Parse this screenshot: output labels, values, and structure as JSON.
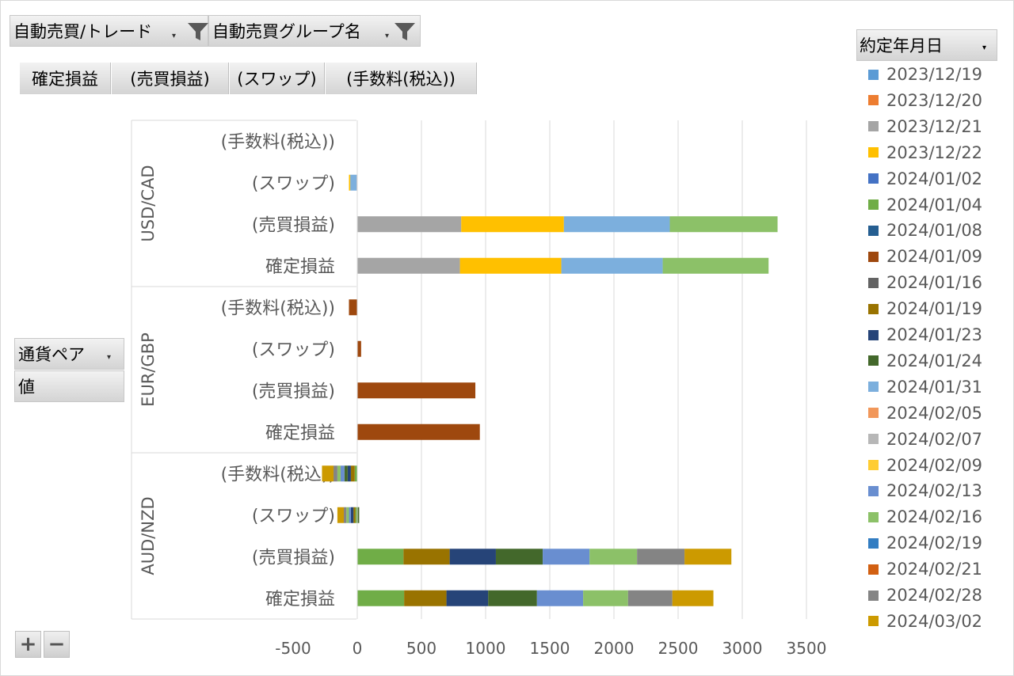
{
  "filters": [
    {
      "label": "自動売買/トレード"
    },
    {
      "label": "自動売買グループ名"
    }
  ],
  "value_buttons": [
    "確定損益",
    "(売買損益)",
    "(スワップ)",
    "(手数料(税込))"
  ],
  "row_field": {
    "label": "通貨ペア",
    "values_label": "値"
  },
  "legend": {
    "title": "約定年月日",
    "items": [
      {
        "label": "2023/12/19",
        "color": "#5b9bd5"
      },
      {
        "label": "2023/12/20",
        "color": "#ed7d31"
      },
      {
        "label": "2023/12/21",
        "color": "#a5a5a5"
      },
      {
        "label": "2023/12/22",
        "color": "#ffc000"
      },
      {
        "label": "2024/01/02",
        "color": "#4472c4"
      },
      {
        "label": "2024/01/04",
        "color": "#70ad47"
      },
      {
        "label": "2024/01/08",
        "color": "#255e91"
      },
      {
        "label": "2024/01/09",
        "color": "#9e480e"
      },
      {
        "label": "2024/01/16",
        "color": "#636363"
      },
      {
        "label": "2024/01/19",
        "color": "#997300"
      },
      {
        "label": "2024/01/23",
        "color": "#264478"
      },
      {
        "label": "2024/01/24",
        "color": "#43682b"
      },
      {
        "label": "2024/01/31",
        "color": "#7cafdd"
      },
      {
        "label": "2024/02/05",
        "color": "#f1975a"
      },
      {
        "label": "2024/02/07",
        "color": "#b7b7b7"
      },
      {
        "label": "2024/02/09",
        "color": "#ffcd33"
      },
      {
        "label": "2024/02/13",
        "color": "#698ed0"
      },
      {
        "label": "2024/02/16",
        "color": "#8cc168"
      },
      {
        "label": "2024/02/19",
        "color": "#327dc2"
      },
      {
        "label": "2024/02/21",
        "color": "#d26012"
      },
      {
        "label": "2024/02/28",
        "color": "#848484"
      },
      {
        "label": "2024/03/02",
        "color": "#cc9a00"
      }
    ]
  },
  "chart_data": {
    "type": "bar",
    "orientation": "horizontal",
    "stacked": true,
    "xlim": [
      -500,
      3500
    ],
    "xticks": [
      -500,
      0,
      500,
      1000,
      1500,
      2000,
      2500,
      3000,
      3500
    ],
    "grid": true,
    "groups": [
      {
        "name": "USD/CAD",
        "rows": [
          {
            "label": "(手数料(税込))",
            "segments": []
          },
          {
            "label": "(スワップ)",
            "segments": [
              {
                "date": "2023/12/21",
                "value": -5
              },
              {
                "date": "2024/01/31",
                "value": -50
              },
              {
                "date": "2023/12/22",
                "value": -10
              }
            ]
          },
          {
            "label": "(売買損益)",
            "segments": [
              {
                "date": "2023/12/21",
                "value": 810
              },
              {
                "date": "2023/12/22",
                "value": 800
              },
              {
                "date": "2024/01/31",
                "value": 825
              },
              {
                "date": "2024/02/16",
                "value": 840
              }
            ]
          },
          {
            "label": "確定損益",
            "segments": [
              {
                "date": "2023/12/21",
                "value": 800
              },
              {
                "date": "2023/12/22",
                "value": 790
              },
              {
                "date": "2024/01/31",
                "value": 790
              },
              {
                "date": "2024/02/16",
                "value": 825
              }
            ]
          }
        ]
      },
      {
        "name": "EUR/GBP",
        "rows": [
          {
            "label": "(手数料(税込))",
            "segments": [
              {
                "date": "2024/01/09",
                "value": -65
              }
            ]
          },
          {
            "label": "(スワップ)",
            "segments": [
              {
                "date": "2024/01/09",
                "value": 30
              }
            ]
          },
          {
            "label": "(売買損益)",
            "segments": [
              {
                "date": "2024/01/09",
                "value": 920
              }
            ]
          },
          {
            "label": "確定損益",
            "segments": [
              {
                "date": "2024/01/09",
                "value": 955
              }
            ]
          }
        ]
      },
      {
        "name": "AUD/NZD",
        "rows": [
          {
            "label": "(手数料(税込))",
            "segments": [
              {
                "date": "2024/01/04",
                "value": -20
              },
              {
                "date": "2024/01/19",
                "value": -30
              },
              {
                "date": "2024/01/23",
                "value": -25
              },
              {
                "date": "2024/01/24",
                "value": -25
              },
              {
                "date": "2024/02/13",
                "value": -30
              },
              {
                "date": "2024/02/16",
                "value": -25
              },
              {
                "date": "2024/02/28",
                "value": -30
              },
              {
                "date": "2024/03/02",
                "value": -90
              }
            ]
          },
          {
            "label": "(スワップ)",
            "segments": [
              {
                "date": "2024/01/04",
                "value": -15
              },
              {
                "date": "2024/01/19",
                "value": -15
              },
              {
                "date": "2024/01/23",
                "value": -20
              },
              {
                "date": "2024/01/24",
                "value": 15
              },
              {
                "date": "2024/02/13",
                "value": -15
              },
              {
                "date": "2024/02/16",
                "value": -20
              },
              {
                "date": "2024/02/28",
                "value": -20
              },
              {
                "date": "2024/03/02",
                "value": -50
              }
            ]
          },
          {
            "label": "(売買損益)",
            "segments": [
              {
                "date": "2024/01/04",
                "value": 360
              },
              {
                "date": "2024/01/19",
                "value": 360
              },
              {
                "date": "2024/01/23",
                "value": 360
              },
              {
                "date": "2024/01/24",
                "value": 365
              },
              {
                "date": "2024/02/13",
                "value": 365
              },
              {
                "date": "2024/02/16",
                "value": 370
              },
              {
                "date": "2024/02/28",
                "value": 370
              },
              {
                "date": "2024/03/02",
                "value": 365
              }
            ]
          },
          {
            "label": "確定損益",
            "segments": [
              {
                "date": "2024/01/04",
                "value": 365
              },
              {
                "date": "2024/01/19",
                "value": 330
              },
              {
                "date": "2024/01/23",
                "value": 325
              },
              {
                "date": "2024/01/24",
                "value": 380
              },
              {
                "date": "2024/02/13",
                "value": 360
              },
              {
                "date": "2024/02/16",
                "value": 350
              },
              {
                "date": "2024/02/28",
                "value": 345
              },
              {
                "date": "2024/03/02",
                "value": 320
              }
            ]
          }
        ]
      }
    ]
  }
}
